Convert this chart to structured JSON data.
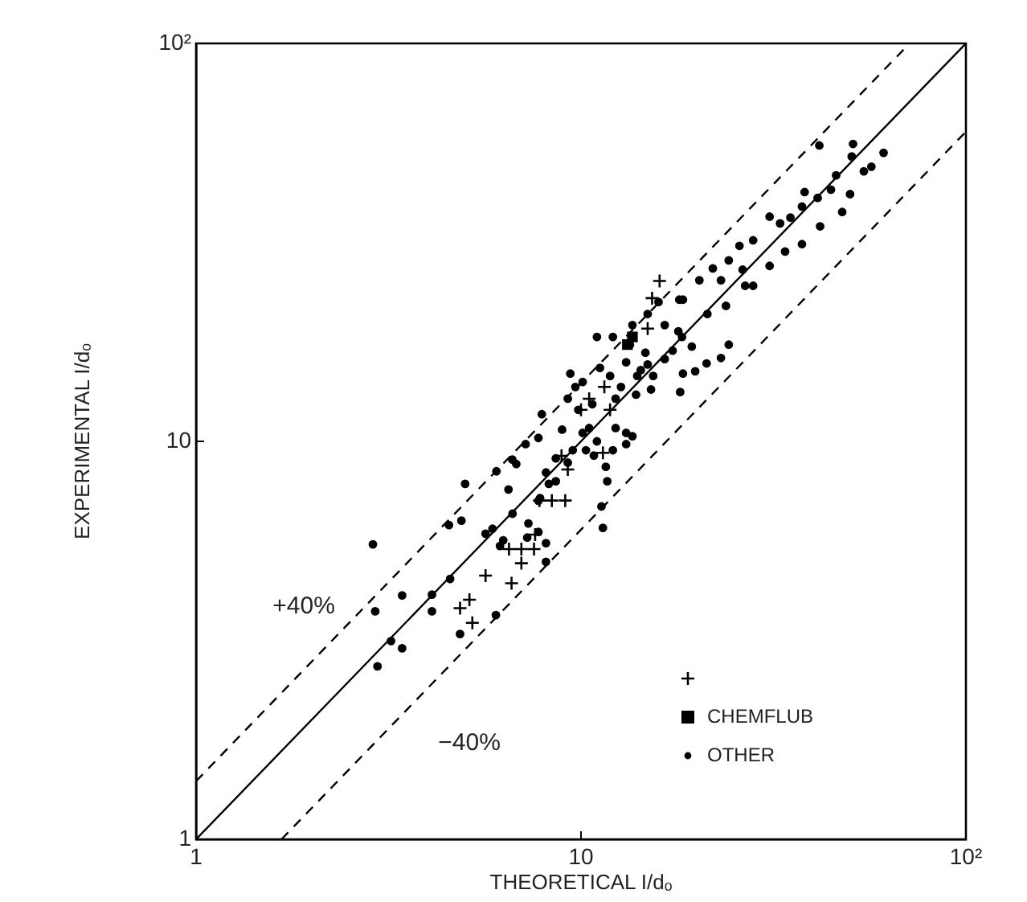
{
  "chart_data": {
    "type": "scatter",
    "xlabel": "THEORETICAL I/dₒ",
    "ylabel": "EXPERIMENTAL I/dₒ",
    "log": "xy",
    "grid": false,
    "legend": "bottom right",
    "xlim": [
      1,
      100
    ],
    "ylim": [
      1,
      100
    ],
    "xticks": [
      1,
      10,
      {
        "value": 100,
        "label": "10²"
      }
    ],
    "yticks": [
      1,
      10,
      {
        "value": 100,
        "label": "10²"
      }
    ],
    "series": [
      {
        "type": "line",
        "color": "#000000",
        "marker": "none",
        "line_style": "solid",
        "x": [
          1,
          100
        ],
        "values": [
          1,
          100
        ]
      },
      {
        "type": "line",
        "name": "+40%",
        "color": "#000000",
        "marker": "none",
        "line_style": "dashed",
        "x": [
          1,
          71.4
        ],
        "values": [
          1.4,
          100
        ]
      },
      {
        "type": "line",
        "name": "−40%",
        "color": "#000000",
        "marker": "none",
        "line_style": "dashed",
        "x": [
          1.667,
          100
        ],
        "values": [
          1,
          60
        ]
      },
      {
        "type": "scatter",
        "color": "#000000",
        "marker": "cross",
        "x": [
          16.0,
          15.3,
          10.0,
          10.5,
          11.5,
          11.9,
          11.4,
          8.9,
          9.24,
          7.8,
          8.4,
          9.1,
          6.5,
          7.0,
          7.55,
          7.6,
          7.0,
          5.65,
          6.6,
          4.85,
          5.13,
          5.22,
          14.9
        ],
        "values": [
          25.3,
          22.9,
          12.0,
          12.8,
          13.7,
          12.0,
          9.36,
          9.2,
          8.5,
          7.1,
          7.1,
          7.1,
          5.36,
          5.36,
          5.36,
          5.83,
          4.94,
          4.6,
          4.4,
          3.81,
          4.0,
          3.5,
          19.2
        ]
      },
      {
        "type": "scatter",
        "name": "CHEMFLUB",
        "color": "#000000",
        "marker": "square",
        "x": [
          13.2,
          13.6
        ],
        "values": [
          17.5,
          18.3
        ]
      },
      {
        "type": "scatter",
        "name": "OTHER",
        "color": "#000000",
        "marker": "circle",
        "x": [
          2.88,
          2.92,
          2.96,
          3.21,
          3.43,
          3.43,
          4.1,
          4.1,
          4.57,
          4.54,
          4.89,
          5.0,
          4.85,
          6.01,
          6.48,
          6.03,
          6.64,
          5.65,
          6.16,
          7.18,
          6.63,
          7.91,
          7.75,
          7.3,
          7.25,
          8.11,
          7.75,
          8.25,
          9.38,
          8.93,
          9.84,
          10.1,
          10.5,
          10.8,
          11.6,
          11.7,
          11.3,
          11.4,
          12.3,
          13.1,
          13.6,
          13.9,
          11.0,
          12.1,
          13.1,
          14.7,
          15.4,
          16.5,
          17.9,
          18.4,
          18.3,
          19.4,
          18.1,
          18.4,
          19.8,
          21.2,
          23.1,
          24.2,
          20.3,
          22.0,
          23.1,
          24.2,
          26.3,
          25.8,
          28.0,
          23.8,
          21.3,
          26.7,
          28.0,
          30.9,
          30.9,
          32.9,
          35.0,
          33.9,
          37.5,
          38.1,
          37.5,
          41.2,
          41.8,
          46.0,
          44.6,
          41.6,
          50.0,
          47.7,
          50.9,
          50.5,
          54.3,
          56.8,
          61.1,
          9.24,
          9.67,
          11.2,
          11.9,
          12.3,
          12.7,
          14.3,
          14.9,
          13.4,
          16.5,
          14.9,
          15.9,
          13.6,
          18.0,
          17.3,
          15.2,
          14.0,
          10.3,
          11.0,
          9.52,
          8.6,
          8.11,
          8.6,
          9.24,
          10.1,
          10.7,
          12.1,
          13.1,
          7.83,
          6.79,
          7.75,
          8.11,
          6.28,
          5.89
        ],
        "values": [
          5.51,
          3.74,
          2.72,
          3.15,
          3.02,
          4.1,
          3.74,
          4.12,
          4.51,
          6.16,
          6.32,
          7.82,
          3.28,
          3.66,
          7.57,
          8.41,
          6.58,
          5.86,
          5.46,
          9.84,
          9.0,
          11.7,
          10.2,
          6.22,
          5.73,
          4.98,
          7.09,
          7.82,
          14.8,
          10.7,
          12.0,
          14.1,
          10.8,
          9.21,
          8.63,
          7.94,
          6.86,
          6.06,
          10.8,
          9.84,
          10.3,
          13.1,
          18.3,
          18.3,
          15.8,
          16.7,
          14.6,
          19.6,
          18.9,
          22.7,
          18.3,
          17.3,
          13.3,
          14.8,
          15.0,
          15.7,
          16.2,
          17.5,
          25.4,
          27.2,
          25.4,
          28.5,
          27.0,
          31.0,
          32.0,
          21.9,
          20.9,
          24.6,
          24.6,
          27.6,
          36.7,
          35.3,
          36.5,
          30.0,
          31.3,
          42.3,
          38.9,
          40.9,
          34.7,
          46.6,
          42.9,
          55.4,
          41.8,
          37.7,
          55.9,
          52.0,
          47.7,
          49.0,
          53.1,
          12.8,
          13.7,
          15.3,
          14.6,
          12.8,
          13.7,
          15.1,
          15.6,
          17.5,
          16.1,
          20.9,
          22.4,
          19.6,
          22.7,
          16.9,
          13.5,
          14.6,
          9.5,
          10.0,
          9.5,
          9.06,
          8.35,
          7.94,
          8.84,
          10.5,
          12.4,
          9.5,
          10.5,
          7.2,
          8.77,
          5.92,
          5.55,
          5.64,
          6.03
        ]
      }
    ]
  }
}
